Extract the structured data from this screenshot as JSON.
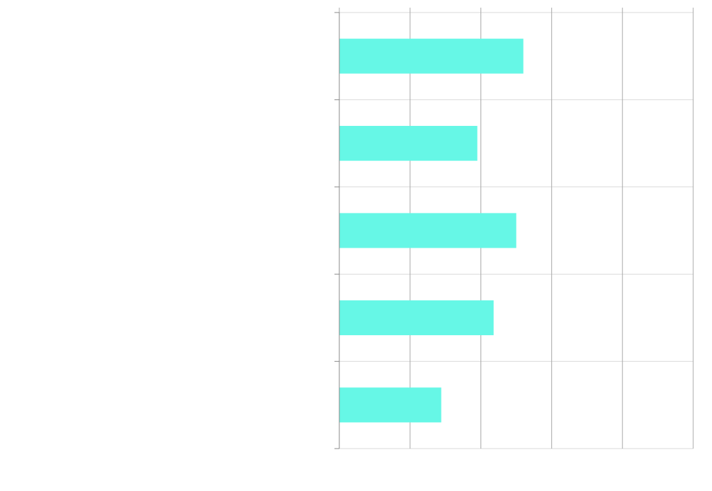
{
  "chart_data": {
    "type": "bar",
    "orientation": "horizontal",
    "title": "",
    "xlabel": "",
    "ylabel": "",
    "categories": [
      "",
      "",
      "",
      "",
      ""
    ],
    "values": [
      2.6,
      1.95,
      2.5,
      2.18,
      1.44
    ],
    "xlim": [
      0,
      5
    ],
    "xticks": [
      0,
      1,
      2,
      3,
      4,
      5
    ],
    "grid": true,
    "legend": "none",
    "colors": {
      "bar": "#66f7e6",
      "grid": "#d9d9d9",
      "vgrid": "#a8a8a8",
      "axis": "#888888"
    }
  }
}
